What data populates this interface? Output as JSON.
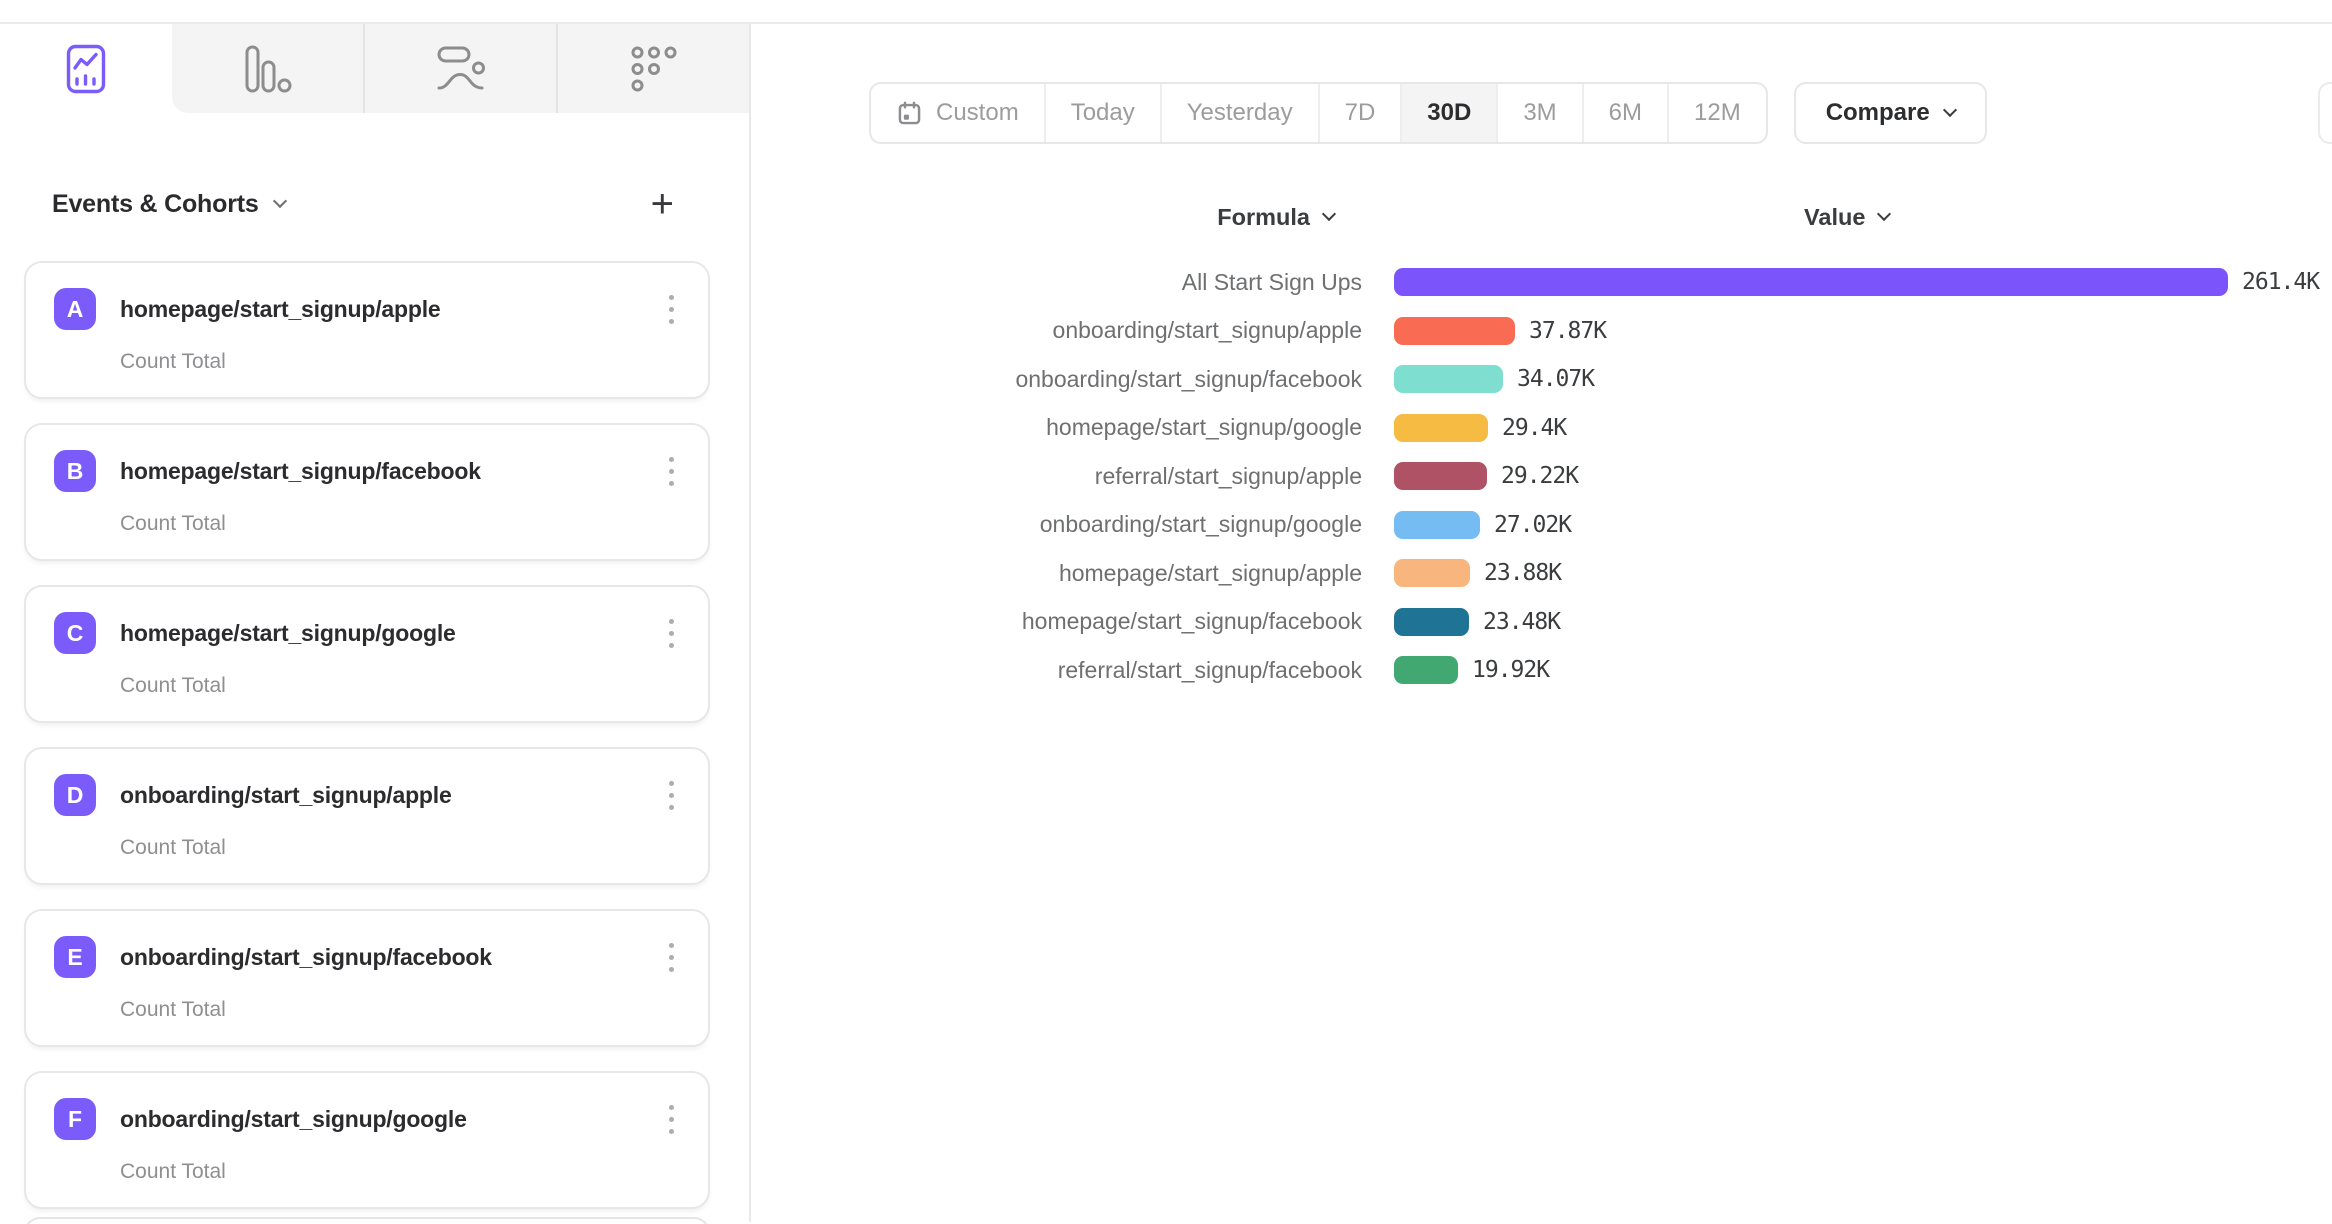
{
  "colors": {
    "brand_purple": "#7B5CFB",
    "badge": "#7B5CFA",
    "tab_inactive_bg": "#F4F4F4",
    "active_segment_bg": "#F4F4F5"
  },
  "tabs": [
    {
      "icon": "line-chart-report-icon",
      "active": true
    },
    {
      "icon": "bar-chart-report-icon",
      "active": false
    },
    {
      "icon": "flows-report-icon",
      "active": false
    },
    {
      "icon": "retention-dots-report-icon",
      "active": false
    }
  ],
  "sidebar": {
    "header": {
      "title": "Events & Cohorts",
      "add_label": "+"
    },
    "events": [
      {
        "letter": "A",
        "name": "homepage/start_signup/apple",
        "metric": "Count Total"
      },
      {
        "letter": "B",
        "name": "homepage/start_signup/facebook",
        "metric": "Count Total"
      },
      {
        "letter": "C",
        "name": "homepage/start_signup/google",
        "metric": "Count Total"
      },
      {
        "letter": "D",
        "name": "onboarding/start_signup/apple",
        "metric": "Count Total"
      },
      {
        "letter": "E",
        "name": "onboarding/start_signup/facebook",
        "metric": "Count Total"
      },
      {
        "letter": "F",
        "name": "onboarding/start_signup/google",
        "metric": "Count Total"
      }
    ]
  },
  "toolbar": {
    "date_ranges": [
      {
        "label": "Custom",
        "icon": "calendar-icon"
      },
      {
        "label": "Today"
      },
      {
        "label": "Yesterday"
      },
      {
        "label": "7D"
      },
      {
        "label": "30D"
      },
      {
        "label": "3M"
      },
      {
        "label": "6M"
      },
      {
        "label": "12M"
      }
    ],
    "active_range": "30D",
    "compare_label": "Compare"
  },
  "chart_data": {
    "type": "bar",
    "orientation": "horizontal",
    "columns": {
      "formula": "Formula",
      "value": "Value"
    },
    "xlim": [
      0,
      261400
    ],
    "grid": false,
    "legend": "none",
    "rows": [
      {
        "label": "All Start Sign Ups",
        "value": 261400,
        "display": "261.4K",
        "color": "#7B55FB"
      },
      {
        "label": "onboarding/start_signup/apple",
        "value": 37870,
        "display": "37.87K",
        "color": "#F96C53"
      },
      {
        "label": "onboarding/start_signup/facebook",
        "value": 34070,
        "display": "34.07K",
        "color": "#7EDFD1"
      },
      {
        "label": "homepage/start_signup/google",
        "value": 29400,
        "display": "29.4K",
        "color": "#F6BB42"
      },
      {
        "label": "referral/start_signup/apple",
        "value": 29220,
        "display": "29.22K",
        "color": "#B05266"
      },
      {
        "label": "onboarding/start_signup/google",
        "value": 27020,
        "display": "27.02K",
        "color": "#74BCF2"
      },
      {
        "label": "homepage/start_signup/apple",
        "value": 23880,
        "display": "23.88K",
        "color": "#F9B57E"
      },
      {
        "label": "homepage/start_signup/facebook",
        "value": 23480,
        "display": "23.48K",
        "color": "#1F7495"
      },
      {
        "label": "referral/start_signup/facebook",
        "value": 19920,
        "display": "19.92K",
        "color": "#41A871"
      }
    ]
  }
}
